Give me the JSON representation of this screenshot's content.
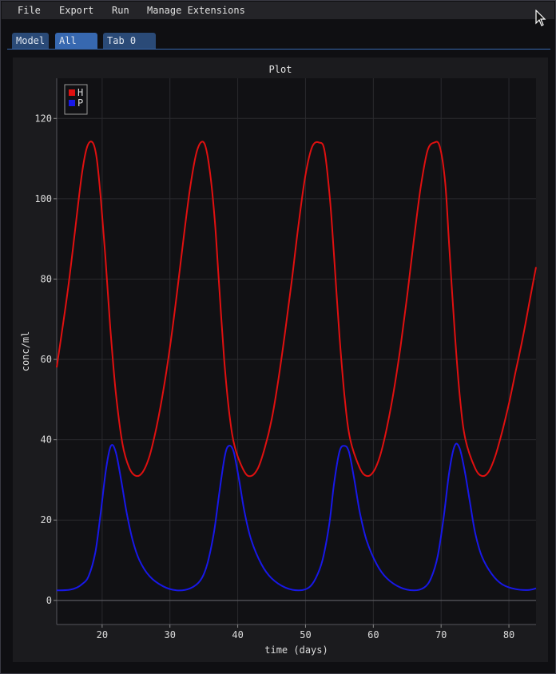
{
  "menu": {
    "items": [
      "File",
      "Export",
      "Run",
      "Manage Extensions"
    ]
  },
  "tabs": [
    {
      "label": "Model",
      "active": false
    },
    {
      "label": "All",
      "active": true
    },
    {
      "label": "Tab 0",
      "active": false
    }
  ],
  "plot": {
    "title": "Plot"
  },
  "colors": {
    "H": "#e01010",
    "P": "#1818e8",
    "tab_active": "#3768b0",
    "tab": "#2a4a77"
  },
  "chart_data": {
    "type": "line",
    "title": "Plot",
    "xlabel": "time (days)",
    "ylabel": "conc/ml",
    "xlim": [
      13.3,
      84
    ],
    "ylim": [
      -6,
      130
    ],
    "xticks": [
      20,
      30,
      40,
      50,
      60,
      70,
      80
    ],
    "yticks": [
      0,
      20,
      40,
      60,
      80,
      100,
      120
    ],
    "grid": true,
    "legend_position": "top-left",
    "series": [
      {
        "name": "H",
        "color": "#e01010",
        "x": [
          13.3,
          14,
          15,
          16,
          17,
          17.8,
          18.6,
          19.2,
          19.8,
          20.5,
          21.2,
          22,
          23,
          24,
          25,
          26,
          27,
          28,
          29,
          30,
          31,
          32,
          33,
          34,
          35,
          35.8,
          36.6,
          37.2,
          38,
          38.8,
          39.6,
          41,
          42,
          43,
          44,
          45,
          46,
          47,
          48,
          49,
          50,
          51,
          52,
          52.8,
          53.6,
          54.2,
          55,
          55.8,
          56.6,
          58,
          59,
          60,
          61,
          62,
          63,
          64,
          65,
          66,
          67,
          68,
          69,
          69.8,
          70.6,
          71.2,
          72,
          72.8,
          73.6,
          75,
          76,
          77,
          78,
          79,
          80,
          81,
          82,
          83,
          84
        ],
        "y": [
          58,
          66,
          78,
          92,
          106,
          113,
          114,
          110,
          100,
          85,
          68,
          52,
          39,
          33,
          31,
          32,
          36,
          43,
          52,
          63,
          76,
          90,
          103,
          112,
          114,
          108,
          95,
          80,
          60,
          46,
          38,
          32,
          31,
          33,
          38,
          45,
          55,
          67,
          80,
          94,
          106,
          113,
          114,
          112,
          100,
          86,
          66,
          50,
          40,
          33,
          31,
          32,
          36,
          43,
          52,
          63,
          76,
          90,
          103,
          112,
          114,
          113,
          104,
          88,
          67,
          50,
          40,
          33,
          31,
          32,
          36,
          42,
          49,
          57,
          65,
          74,
          83
        ]
      },
      {
        "name": "P",
        "color": "#1818e8",
        "x": [
          13.3,
          15,
          16,
          17,
          18,
          19,
          19.8,
          20.6,
          21.3,
          22,
          22.8,
          23.6,
          24.5,
          25.5,
          27,
          29,
          31,
          33,
          34.5,
          35.5,
          36.5,
          37.3,
          38.1,
          38.7,
          39.4,
          40.2,
          41,
          42,
          43.5,
          45,
          47,
          49,
          50.5,
          51.5,
          52.5,
          53.5,
          54.2,
          55,
          55.7,
          56.4,
          57.2,
          58,
          59,
          60.5,
          62,
          64,
          66,
          67.5,
          68.5,
          69.5,
          70.4,
          71.2,
          72,
          72.7,
          73.4,
          74.2,
          75,
          76,
          77.5,
          79,
          81,
          83,
          84
        ],
        "y": [
          2.5,
          2.6,
          3,
          4,
          6,
          12,
          22,
          33,
          38.5,
          37,
          30,
          22,
          15,
          10,
          6,
          3.5,
          2.5,
          3,
          5,
          9,
          17,
          27,
          36,
          38.5,
          37,
          30,
          22,
          15,
          9,
          5.5,
          3.2,
          2.5,
          3.2,
          5.5,
          10,
          19,
          29,
          37,
          38.5,
          37,
          30,
          22,
          15,
          9,
          5.5,
          3.2,
          2.5,
          3.2,
          5.5,
          11,
          21,
          32,
          38.5,
          38,
          33,
          25,
          17,
          11,
          6.5,
          4,
          2.8,
          2.6,
          3
        ]
      }
    ]
  }
}
